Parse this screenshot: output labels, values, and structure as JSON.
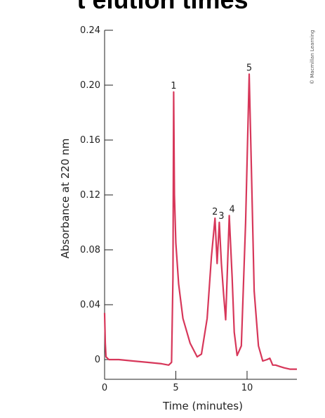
{
  "header": {
    "title": "t elution times",
    "credit": "© Macmillan Learning"
  },
  "chart_data": {
    "type": "line",
    "title": "t elution times",
    "xlabel": "Time (minutes)",
    "ylabel": "Absorbance at 220 nm",
    "xlim": [
      0,
      13.5
    ],
    "ylim": [
      0,
      0.24
    ],
    "xticks": [
      0,
      5,
      10
    ],
    "xtick_labels": [
      "0",
      "5",
      "10"
    ],
    "yticks": [
      0,
      0.04,
      0.08,
      0.12,
      0.16,
      0.2,
      0.24
    ],
    "ytick_labels": [
      "0",
      "0.04",
      "0.08",
      "0.12",
      "0.16",
      "0.20",
      "0.24"
    ],
    "line_color": "#d7375a",
    "series": [
      {
        "x": [
          0.0,
          0.05,
          0.1,
          0.3,
          1.0,
          2.0,
          3.0,
          4.0,
          4.5,
          4.7,
          4.8,
          4.85,
          4.9,
          5.0,
          5.2,
          5.5,
          6.0,
          6.5,
          6.8,
          7.2,
          7.5,
          7.75,
          7.9,
          8.05,
          8.2,
          8.35,
          8.5,
          8.75,
          8.95,
          9.1,
          9.3,
          9.6,
          9.9,
          10.15,
          10.3,
          10.5,
          10.8,
          11.1,
          11.4,
          11.6,
          11.8,
          12.0,
          12.3,
          12.6,
          13.0,
          13.5
        ],
        "y": [
          0.034,
          0.012,
          0.002,
          0.0,
          0.0,
          -0.001,
          -0.002,
          -0.003,
          -0.004,
          -0.002,
          0.06,
          0.195,
          0.12,
          0.085,
          0.055,
          0.03,
          0.012,
          0.002,
          0.004,
          0.03,
          0.075,
          0.103,
          0.07,
          0.1,
          0.07,
          0.048,
          0.029,
          0.105,
          0.06,
          0.02,
          0.003,
          0.01,
          0.1,
          0.208,
          0.14,
          0.05,
          0.01,
          -0.001,
          0.0,
          0.001,
          -0.004,
          -0.004,
          -0.005,
          -0.006,
          -0.007,
          -0.007
        ]
      }
    ],
    "peaks": [
      {
        "label": "1",
        "x": 4.85,
        "y": 0.195
      },
      {
        "label": "2",
        "x": 7.75,
        "y": 0.103
      },
      {
        "label": "3",
        "x": 8.2,
        "y": 0.1
      },
      {
        "label": "4",
        "x": 8.95,
        "y": 0.105
      },
      {
        "label": "5",
        "x": 10.15,
        "y": 0.208
      }
    ]
  }
}
